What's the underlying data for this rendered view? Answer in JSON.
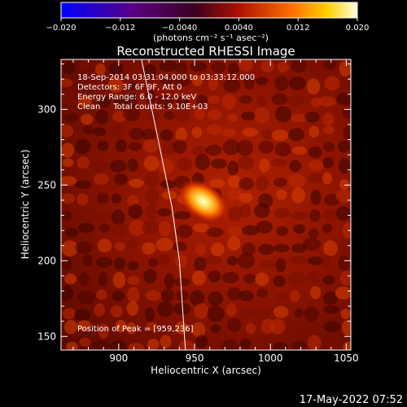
{
  "chart_data": {
    "type": "heatmap",
    "title": "Reconstructed RHESSI Image",
    "xlabel": "Heliocentric X (arcsec)",
    "ylabel": "Heliocentric Y (arcsec)",
    "xlim": [
      862,
      1053
    ],
    "ylim": [
      141,
      333
    ],
    "x_ticks": [
      900,
      950,
      1000,
      1050
    ],
    "y_ticks": [
      150,
      200,
      250,
      300
    ],
    "colormap": "black-purple-red-yellow-white (IDL color table 3, 'red temperature')",
    "colorbar": {
      "range": [
        -0.02,
        0.02
      ],
      "tick_values": [
        -0.02,
        -0.012,
        -0.004,
        0.004,
        0.012,
        0.02
      ],
      "tick_labels": [
        "−0.020",
        "−0.012",
        "−0.0040",
        "0.0040",
        "0.012",
        "0.020"
      ],
      "unit_label": "(photons cm⁻² s⁻¹ asec⁻²)"
    },
    "annotations": [
      "18-Sep-2014 03:31:04.000 to 03:33:12.000",
      "Detectors: 3F 6F 9F, Att 0",
      "Energy Range: 6.0 - 12.0 keV",
      "Clean     Total counts: 9.10E+03",
      "Position of Peak = [959,236]"
    ],
    "peak": {
      "x": 959,
      "y": 236
    },
    "limb_curve": [
      [
        915,
        333
      ],
      [
        925,
        285
      ],
      [
        935,
        236
      ],
      [
        940,
        200
      ],
      [
        942,
        170
      ],
      [
        944,
        141
      ]
    ],
    "grid": false,
    "timestamp": "17-May-2022 07:52"
  }
}
